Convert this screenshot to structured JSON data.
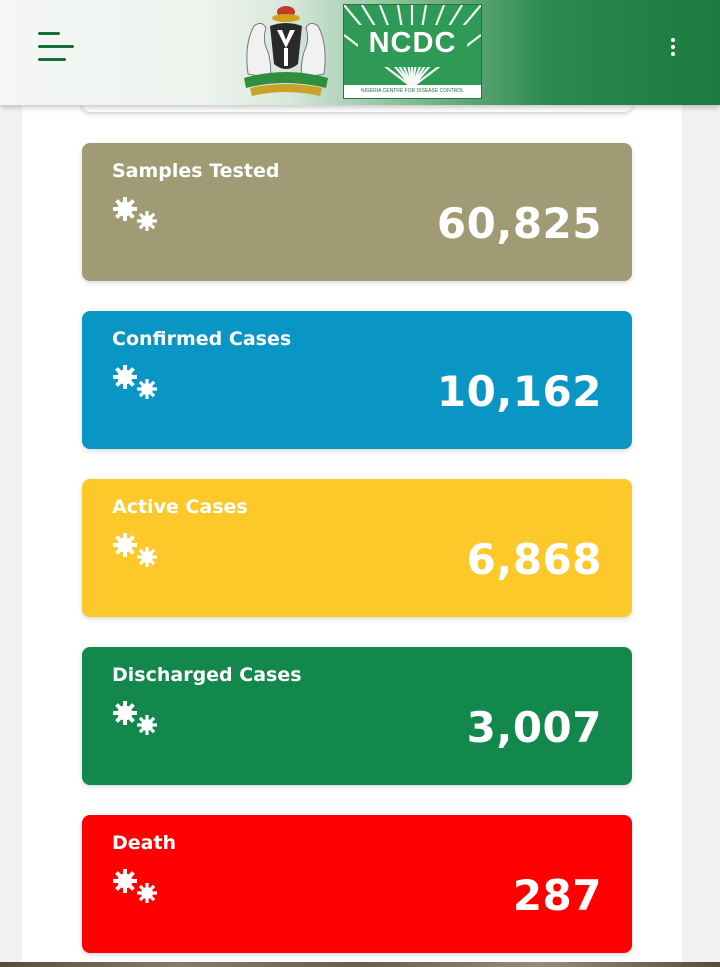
{
  "header": {
    "logo_text": "NCDC",
    "logo_subtitle": "NIGERIA CENTRE FOR DISEASE CONTROL"
  },
  "stats": [
    {
      "label": "Samples Tested",
      "value": "60,825",
      "color": "#a09b74"
    },
    {
      "label": "Confirmed Cases",
      "value": "10,162",
      "color": "#0a96c5"
    },
    {
      "label": "Active Cases",
      "value": "6,868",
      "color": "#fcc82a"
    },
    {
      "label": "Discharged Cases",
      "value": "3,007",
      "color": "#12884c"
    },
    {
      "label": "Death",
      "value": "287",
      "color": "#ff0000"
    }
  ],
  "icons": {
    "menu": "hamburger-menu-icon",
    "more": "more-vertical-icon",
    "stat": "virus-gears-icon"
  }
}
